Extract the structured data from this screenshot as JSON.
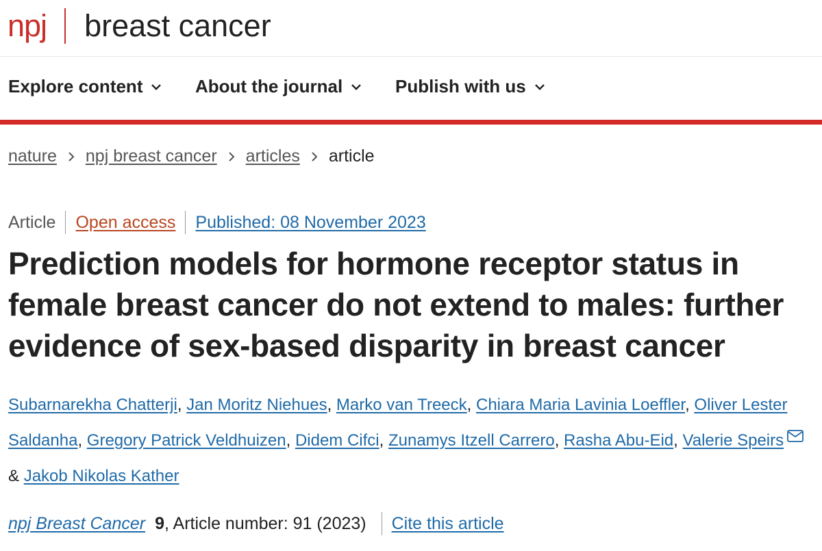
{
  "header": {
    "brand_prefix": "npj",
    "brand_title": "breast cancer",
    "brand_color": "#c8302c"
  },
  "nav": {
    "items": [
      {
        "label": "Explore content",
        "icon": "chevron-down-icon"
      },
      {
        "label": "About the journal",
        "icon": "chevron-down-icon"
      },
      {
        "label": "Publish with us",
        "icon": "chevron-down-icon"
      }
    ],
    "accent_color": "#d42b27"
  },
  "breadcrumb": {
    "items": [
      "nature",
      "npj breast cancer",
      "articles"
    ],
    "current": "article",
    "separator_icon": "chevron-right-icon"
  },
  "meta": {
    "type": "Article",
    "access": "Open access",
    "published": "Published: 08 November 2023",
    "access_color": "#b9461f",
    "link_color": "#1f6aa8"
  },
  "article": {
    "title": "Prediction models for hormone receptor status in female breast cancer do not extend to males: further evidence of sex-based disparity in breast cancer"
  },
  "authors": [
    "Subarnarekha Chatterji",
    "Jan Moritz Niehues",
    "Marko van Treeck",
    "Chiara Maria Lavinia Loeffler",
    "Oliver Lester Saldanha",
    "Gregory Patrick Veldhuizen",
    "Didem Cifci",
    "Zunamys Itzell Carrero",
    "Rasha Abu-Eid",
    "Valerie Speirs",
    "Jakob Nikolas Kather"
  ],
  "authors_text": {
    "sep": ", ",
    "and": " & ",
    "mail_icon": "mail-icon"
  },
  "citation": {
    "journal": "npj Breast Cancer",
    "volume": "9",
    "rest": ", Article number: 91 (2023)",
    "cite_link": "Cite this article"
  }
}
